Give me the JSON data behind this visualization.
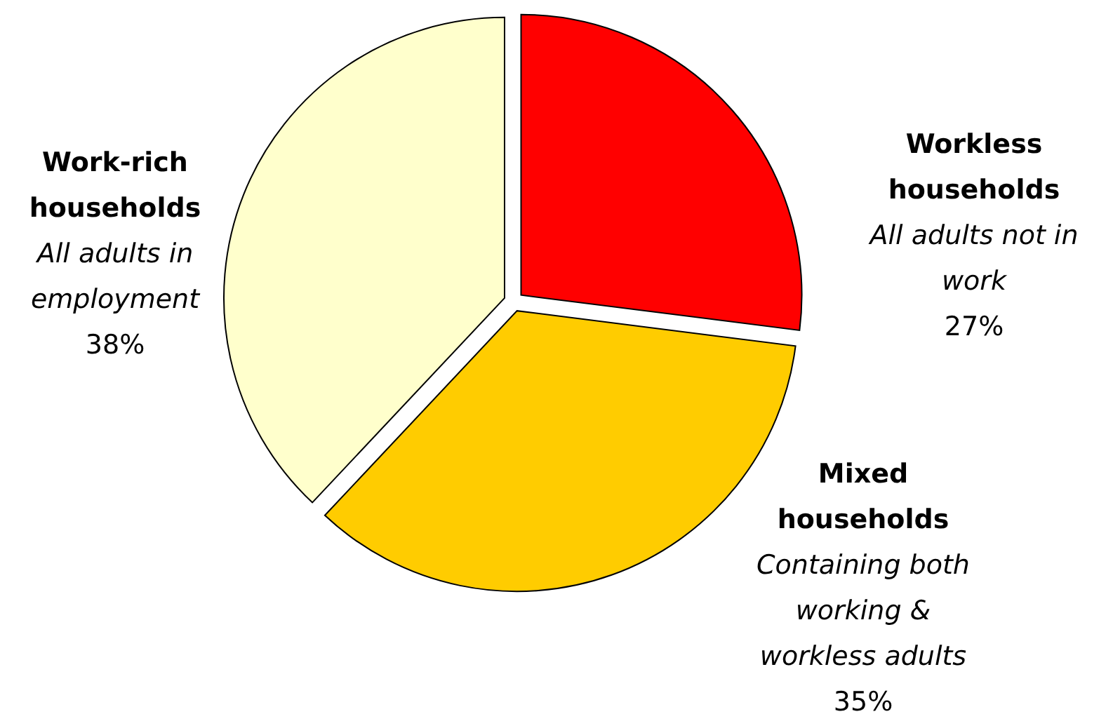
{
  "chart_data": {
    "type": "pie",
    "categories": [
      "Workless households",
      "Mixed households",
      "Work-rich households"
    ],
    "values": [
      27,
      35,
      38
    ],
    "colors": [
      "#ff0000",
      "#ffcc00",
      "#ffffcc"
    ],
    "value_labels": [
      "27%",
      "35%",
      "38%"
    ],
    "annotations": [
      "All adults not in work",
      "Containing both working & workless adults",
      "All adults in employment"
    ]
  }
}
